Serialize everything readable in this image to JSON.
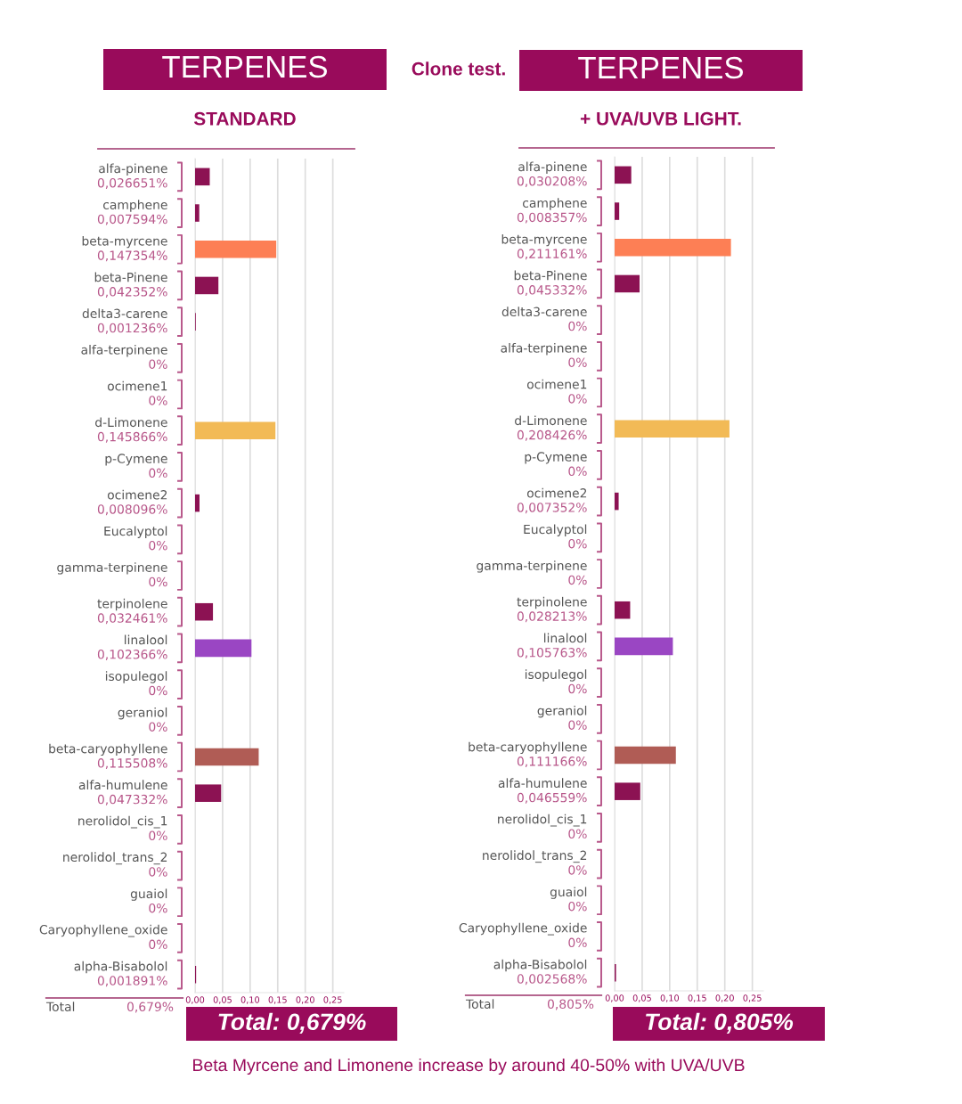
{
  "chart_data": [
    {
      "type": "bar",
      "orientation": "horizontal",
      "title": "TERPENES",
      "subtitle": "STANDARD",
      "categories": [
        "alfa-pinene",
        "camphene",
        "beta-myrcene",
        "beta-Pinene",
        "delta3-carene",
        "alfa-terpinene",
        "ocimene1",
        "d-Limonene",
        "p-Cymene",
        "ocimene2",
        "Eucalyptol",
        "gamma-terpinene",
        "terpinolene",
        "linalool",
        "isopulegol",
        "geraniol",
        "beta-caryophyllene",
        "alfa-humulene",
        "nerolidol_cis_1",
        "nerolidol_trans_2",
        "guaiol",
        "Caryophyllene_oxide",
        "alpha-Bisabolol"
      ],
      "values": [
        0.026651,
        0.007594,
        0.147354,
        0.042352,
        0.001236,
        0,
        0,
        0.145866,
        0,
        0.008096,
        0,
        0,
        0.032461,
        0.102366,
        0,
        0,
        0.115508,
        0.047332,
        0,
        0,
        0,
        0,
        0.001891
      ],
      "value_labels": [
        "0,026651%",
        "0,007594%",
        "0,147354%",
        "0,042352%",
        "0,001236%",
        "0%",
        "0%",
        "0,145866%",
        "0%",
        "0,008096%",
        "0%",
        "0%",
        "0,032461%",
        "0,102366%",
        "0%",
        "0%",
        "0,115508%",
        "0,047332%",
        "0%",
        "0%",
        "0%",
        "0%",
        "0,001891%"
      ],
      "colors": [
        "#8c1253",
        "#8c1253",
        "#fd7f55",
        "#8c1253",
        "#8c1253",
        "#8c1253",
        "#8c1253",
        "#f2ba56",
        "#8c1253",
        "#8c1253",
        "#8c1253",
        "#8c1253",
        "#8c1253",
        "#9a46c3",
        "#8c1253",
        "#8c1253",
        "#b05c55",
        "#8c1253",
        "#8c1253",
        "#8c1253",
        "#8c1253",
        "#8c1253",
        "#8c1253"
      ],
      "xlim": [
        0,
        0.27
      ],
      "xticks": [
        {
          "value": 0,
          "label": "0,00"
        },
        {
          "value": 0.05,
          "label": "0,05"
        },
        {
          "value": 0.1,
          "label": "0,10"
        },
        {
          "value": 0.15,
          "label": "0,15"
        },
        {
          "value": 0.2,
          "label": "0,20"
        },
        {
          "value": 0.25,
          "label": "0,25"
        }
      ],
      "grid": "x",
      "annotations": [
        "Total",
        "0,679%",
        "Total: 0,679%",
        "Clone test."
      ]
    },
    {
      "type": "bar",
      "orientation": "horizontal",
      "title": "TERPENES",
      "subtitle": "+ UVA/UVB LIGHT.",
      "categories": [
        "alfa-pinene",
        "camphene",
        "beta-myrcene",
        "beta-Pinene",
        "delta3-carene",
        "alfa-terpinene",
        "ocimene1",
        "d-Limonene",
        "p-Cymene",
        "ocimene2",
        "Eucalyptol",
        "gamma-terpinene",
        "terpinolene",
        "linalool",
        "isopulegol",
        "geraniol",
        "beta-caryophyllene",
        "alfa-humulene",
        "nerolidol_cis_1",
        "nerolidol_trans_2",
        "guaiol",
        "Caryophyllene_oxide",
        "alpha-Bisabolol"
      ],
      "values": [
        0.030208,
        0.008357,
        0.211161,
        0.045332,
        0,
        0,
        0,
        0.208426,
        0,
        0.007352,
        0,
        0,
        0.028213,
        0.105763,
        0,
        0,
        0.111166,
        0.046559,
        0,
        0,
        0,
        0,
        0.002568
      ],
      "value_labels": [
        "0,030208%",
        "0,008357%",
        "0,211161%",
        "0,045332%",
        "0%",
        "0%",
        "0%",
        "0,208426%",
        "0%",
        "0,007352%",
        "0%",
        "0%",
        "0,028213%",
        "0,105763%",
        "0%",
        "0%",
        "0,111166%",
        "0,046559%",
        "0%",
        "0%",
        "0%",
        "0%",
        "0,002568%"
      ],
      "colors": [
        "#8c1253",
        "#8c1253",
        "#fd7f55",
        "#8c1253",
        "#8c1253",
        "#8c1253",
        "#8c1253",
        "#f2ba56",
        "#8c1253",
        "#8c1253",
        "#8c1253",
        "#8c1253",
        "#8c1253",
        "#9a46c3",
        "#8c1253",
        "#8c1253",
        "#b05c55",
        "#8c1253",
        "#8c1253",
        "#8c1253",
        "#8c1253",
        "#8c1253",
        "#8c1253"
      ],
      "xlim": [
        0,
        0.27
      ],
      "xticks": [
        {
          "value": 0,
          "label": "0,00"
        },
        {
          "value": 0.05,
          "label": "0,05"
        },
        {
          "value": 0.1,
          "label": "0,10"
        },
        {
          "value": 0.15,
          "label": "0,15"
        },
        {
          "value": 0.2,
          "label": "0,20"
        },
        {
          "value": 0.25,
          "label": "0,25"
        }
      ],
      "grid": "x",
      "annotations": [
        "Total",
        "0,805%",
        "Total: 0,805%",
        "Beta Myrcene and Limonene increase by around 40-50% with UVA/UVB"
      ]
    }
  ]
}
